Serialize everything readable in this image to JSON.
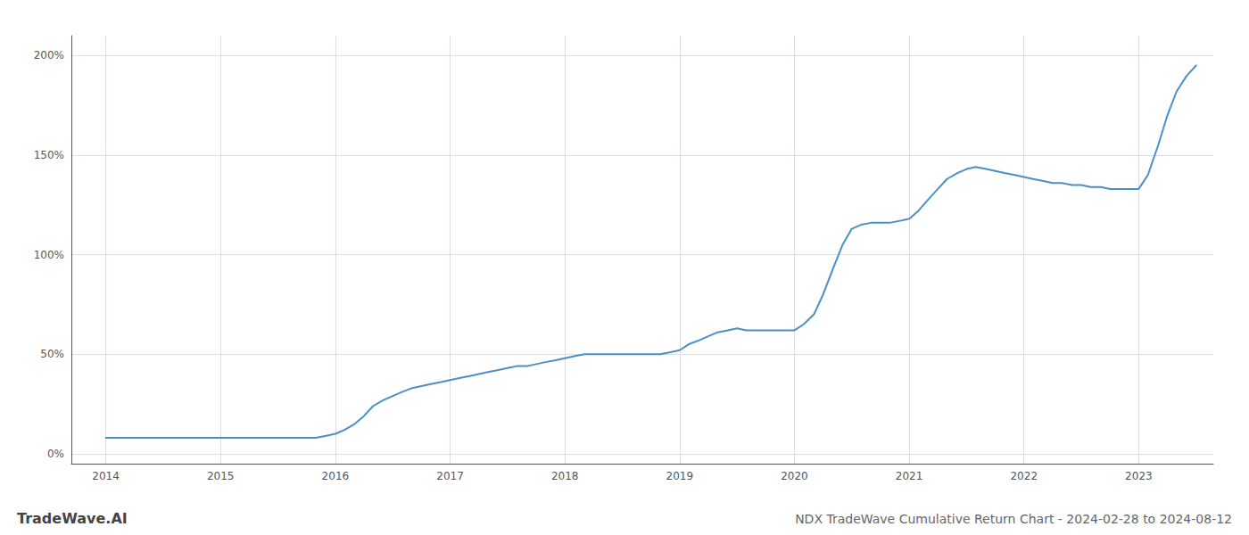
{
  "chart_data": {
    "type": "line",
    "title": "NDX TradeWave Cumulative Return Chart - 2024-02-28 to 2024-08-12",
    "annotations": [
      "TradeWave.AI"
    ],
    "color": "#4a90c4",
    "grid": true,
    "x": [
      2014.0,
      2014.08,
      2014.17,
      2014.25,
      2014.33,
      2014.42,
      2014.5,
      2014.58,
      2014.67,
      2014.75,
      2014.83,
      2014.92,
      2015.0,
      2015.08,
      2015.17,
      2015.25,
      2015.33,
      2015.42,
      2015.5,
      2015.58,
      2015.67,
      2015.75,
      2015.83,
      2015.92,
      2016.0,
      2016.08,
      2016.17,
      2016.25,
      2016.33,
      2016.42,
      2016.5,
      2016.58,
      2016.67,
      2016.75,
      2016.83,
      2016.92,
      2017.0,
      2017.08,
      2017.17,
      2017.25,
      2017.33,
      2017.42,
      2017.5,
      2017.58,
      2017.67,
      2017.75,
      2017.83,
      2017.92,
      2018.0,
      2018.08,
      2018.17,
      2018.25,
      2018.33,
      2018.42,
      2018.5,
      2018.58,
      2018.67,
      2018.75,
      2018.83,
      2018.92,
      2019.0,
      2019.08,
      2019.17,
      2019.25,
      2019.33,
      2019.42,
      2019.5,
      2019.58,
      2019.67,
      2019.75,
      2019.83,
      2019.92,
      2020.0,
      2020.08,
      2020.17,
      2020.25,
      2020.33,
      2020.42,
      2020.5,
      2020.58,
      2020.67,
      2020.75,
      2020.83,
      2020.92,
      2021.0,
      2021.08,
      2021.17,
      2021.25,
      2021.33,
      2021.42,
      2021.5,
      2021.58,
      2021.67,
      2021.75,
      2021.83,
      2021.92,
      2022.0,
      2022.08,
      2022.17,
      2022.25,
      2022.33,
      2022.42,
      2022.5,
      2022.58,
      2022.67,
      2022.75,
      2022.83,
      2022.92,
      2023.0,
      2023.08,
      2023.17,
      2023.25,
      2023.33,
      2023.42,
      2023.5
    ],
    "values": [
      8,
      8,
      8,
      8,
      8,
      8,
      8,
      8,
      8,
      8,
      8,
      8,
      8,
      8,
      8,
      8,
      8,
      8,
      8,
      8,
      8,
      8,
      8,
      9,
      10,
      12,
      15,
      19,
      24,
      27,
      29,
      31,
      33,
      34,
      35,
      36,
      37,
      38,
      39,
      40,
      41,
      42,
      43,
      44,
      44,
      45,
      46,
      47,
      48,
      49,
      50,
      50,
      50,
      50,
      50,
      50,
      50,
      50,
      50,
      51,
      52,
      55,
      57,
      59,
      61,
      62,
      63,
      62,
      62,
      62,
      62,
      62,
      62,
      65,
      70,
      80,
      92,
      105,
      113,
      115,
      116,
      116,
      116,
      117,
      118,
      122,
      128,
      133,
      138,
      141,
      143,
      144,
      143,
      142,
      141,
      140,
      139,
      138,
      137,
      136,
      136,
      135,
      135,
      134,
      134,
      133,
      133,
      133,
      133,
      140,
      155,
      170,
      182,
      190,
      195
    ],
    "xlim": [
      2013.7,
      2023.65
    ],
    "ylim": [
      -5,
      210
    ],
    "xticks": [
      2014,
      2015,
      2016,
      2017,
      2018,
      2019,
      2020,
      2021,
      2022,
      2023
    ],
    "yticks": [
      {
        "value": 0,
        "label": "0%"
      },
      {
        "value": 50,
        "label": "50%"
      },
      {
        "value": 100,
        "label": "100%"
      },
      {
        "value": 150,
        "label": "150%"
      },
      {
        "value": 200,
        "label": "200%"
      }
    ]
  }
}
